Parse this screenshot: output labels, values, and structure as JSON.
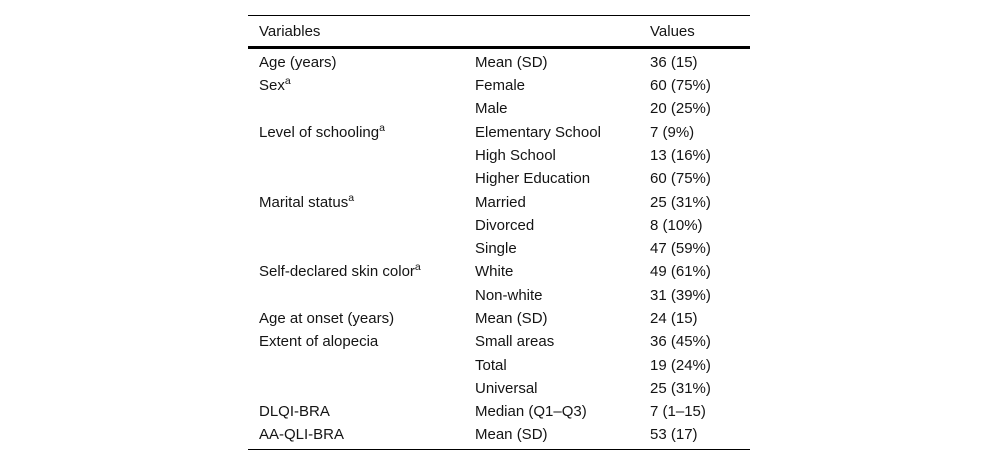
{
  "table": {
    "columns": [
      "Variables",
      "Values"
    ],
    "rows": [
      {
        "variable": "Age (years)",
        "sup": "",
        "category": "Mean (SD)",
        "value": "36 (15)"
      },
      {
        "variable": "Sex",
        "sup": "a",
        "category": "Female",
        "value": "60 (75%)"
      },
      {
        "variable": "",
        "sup": "",
        "category": "Male",
        "value": "20 (25%)"
      },
      {
        "variable": "Level of schooling",
        "sup": "a",
        "category": "Elementary School",
        "value": "7 (9%)"
      },
      {
        "variable": "",
        "sup": "",
        "category": "High School",
        "value": "13 (16%)"
      },
      {
        "variable": "",
        "sup": "",
        "category": "Higher Education",
        "value": "60 (75%)"
      },
      {
        "variable": "Marital status",
        "sup": "a",
        "category": "Married",
        "value": "25 (31%)"
      },
      {
        "variable": "",
        "sup": "",
        "category": "Divorced",
        "value": "8 (10%)"
      },
      {
        "variable": "",
        "sup": "",
        "category": "Single",
        "value": "47 (59%)"
      },
      {
        "variable": "Self-declared skin color",
        "sup": "a",
        "category": "White",
        "value": "49 (61%)"
      },
      {
        "variable": "",
        "sup": "",
        "category": "Non-white",
        "value": "31 (39%)"
      },
      {
        "variable": "Age at onset (years)",
        "sup": "",
        "category": "Mean (SD)",
        "value": "24 (15)"
      },
      {
        "variable": "Extent of alopecia",
        "sup": "",
        "category": "Small areas",
        "value": "36 (45%)"
      },
      {
        "variable": "",
        "sup": "",
        "category": "Total",
        "value": "19 (24%)"
      },
      {
        "variable": "",
        "sup": "",
        "category": "Universal",
        "value": "25 (31%)"
      },
      {
        "variable": "DLQI-BRA",
        "sup": "",
        "category": "Median (Q1–Q3)",
        "value": "7 (1–15)"
      },
      {
        "variable": "AA-QLI-BRA",
        "sup": "",
        "category": "Mean (SD)",
        "value": "53 (17)"
      }
    ]
  },
  "colors": {
    "text": "#141414",
    "rule": "#000000",
    "background": "#ffffff"
  }
}
